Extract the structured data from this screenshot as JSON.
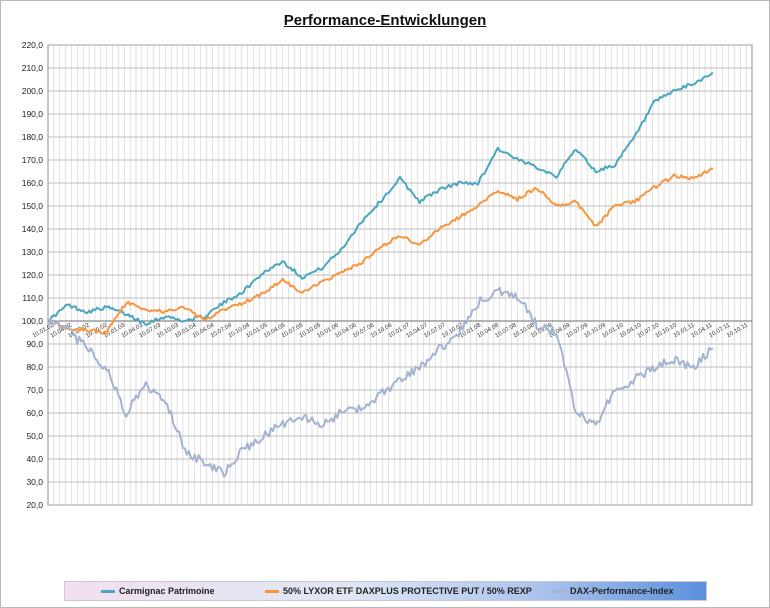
{
  "chart_data": {
    "type": "line",
    "title": "Performance-Entwicklungen",
    "xlabel": "",
    "ylabel": "",
    "ylim": [
      20,
      220
    ],
    "yticks": [
      "20,0",
      "30,0",
      "40,0",
      "50,0",
      "60,0",
      "70,0",
      "80,0",
      "90,0",
      "100,0",
      "110,0",
      "120,0",
      "130,0",
      "140,0",
      "150,0",
      "160,0",
      "170,0",
      "180,0",
      "190,0",
      "200,0",
      "210,0",
      "220,0"
    ],
    "x": [
      2002.0,
      2002.25,
      2002.5,
      2002.75,
      2003.0,
      2003.25,
      2003.5,
      2003.75,
      2004.0,
      2004.25,
      2004.5,
      2004.75,
      2005.0,
      2005.25,
      2005.5,
      2005.75,
      2006.0,
      2006.25,
      2006.5,
      2006.75,
      2007.0,
      2007.25,
      2007.5,
      2007.75,
      2008.0,
      2008.25,
      2008.5,
      2008.75,
      2009.0,
      2009.25,
      2009.5,
      2009.75,
      2010.0,
      2010.25,
      2010.5
    ],
    "xlim": [
      2002.0,
      2011.0
    ],
    "grid": true,
    "legend_position": "bottom",
    "series": [
      {
        "name": "Carmignac Patrimoine",
        "color": "#4aa7bd",
        "values": [
          100,
          107,
          104,
          106,
          103,
          99,
          102,
          100,
          102,
          108,
          113,
          121,
          126,
          119,
          123,
          131,
          143,
          152,
          162,
          152,
          157,
          160,
          160,
          175,
          170,
          167,
          163,
          175,
          165,
          168,
          180,
          195,
          200,
          203,
          208
        ]
      },
      {
        "name": "50% LYXOR ETF DAXPLUS PROTECTIVE PUT / 50% REXP",
        "color": "#f7963e",
        "values": [
          100,
          97,
          96,
          95,
          108,
          105,
          104,
          106,
          100,
          105,
          108,
          112,
          118,
          112,
          117,
          121,
          125,
          132,
          137,
          133,
          140,
          145,
          150,
          157,
          153,
          158,
          150,
          152,
          141,
          150,
          152,
          158,
          163,
          162,
          166
        ]
      },
      {
        "name": "DAX-Performance-Index",
        "color": "#a3b4d2",
        "values": [
          100,
          96,
          88,
          79,
          60,
          72,
          66,
          44,
          38,
          34,
          44,
          50,
          55,
          58,
          55,
          60,
          62,
          68,
          75,
          80,
          88,
          94,
          108,
          113,
          111,
          98,
          95,
          60,
          55,
          70,
          75,
          80,
          83,
          80,
          88
        ]
      }
    ],
    "date_labels": [
      "10.01.02",
      "10.04.02",
      "10.07.02",
      "10.10.02",
      "10.01.03",
      "10.04.03",
      "10.07.03",
      "10.10.03",
      "10.01.04",
      "10.04.04",
      "10.07.04",
      "10.10.04",
      "10.01.05",
      "10.04.05",
      "10.07.05",
      "10.10.05",
      "10.01.06",
      "10.04.06",
      "10.07.06",
      "10.10.06",
      "10.01.07",
      "10.04.07",
      "10.07.07",
      "10.10.07",
      "10.01.08",
      "10.04.08",
      "10.07.08",
      "10.10.08",
      "10.01.09",
      "10.04.09",
      "10.07.09",
      "10.10.09",
      "10.01.10",
      "10.04.10",
      "10.07.10",
      "10.10.10",
      "10.01.11",
      "10.04.11",
      "10.07.11",
      "10.10.11"
    ]
  }
}
